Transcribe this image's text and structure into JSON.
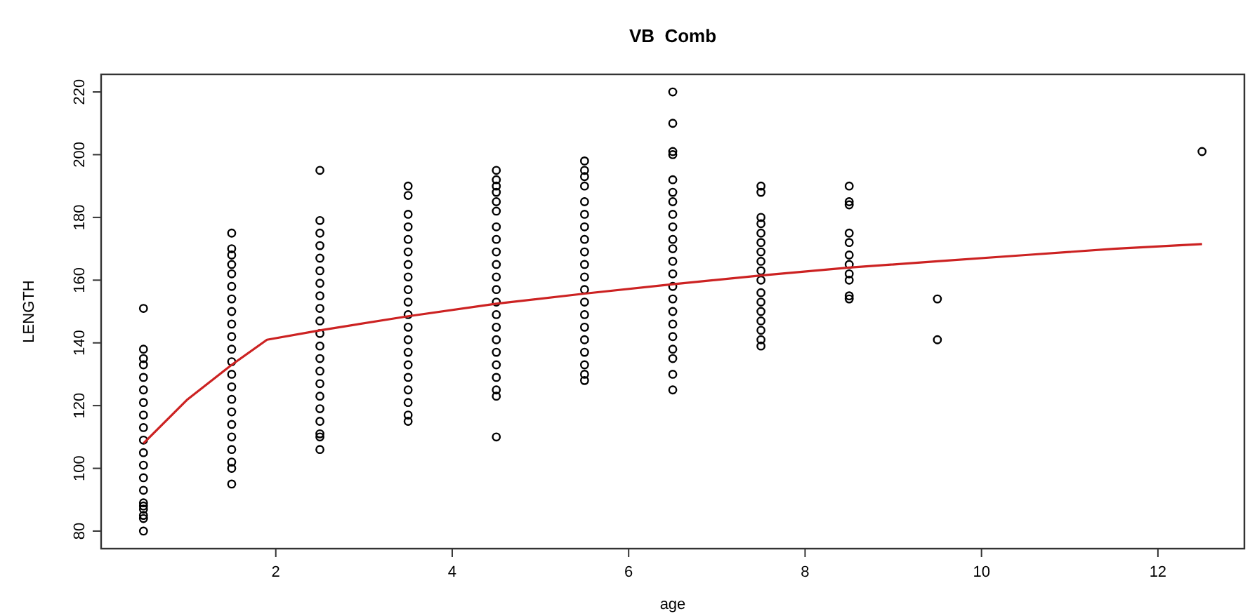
{
  "chart_data": {
    "type": "scatter",
    "title": "VB  Comb",
    "xlabel": "age",
    "ylabel": "LENGTH",
    "xlim": [
      0.02,
      12.98
    ],
    "ylim": [
      74.4,
      225.6
    ],
    "xticks": [
      2,
      4,
      6,
      8,
      10,
      12
    ],
    "yticks": [
      80,
      100,
      120,
      140,
      160,
      180,
      200,
      220
    ],
    "marker": "circle",
    "grid": false,
    "series": [
      {
        "color": "#000000",
        "x": [
          0.5,
          0.5,
          0.5,
          0.5,
          0.5,
          0.5,
          0.5,
          0.5,
          0.5,
          0.5,
          0.5,
          0.5,
          0.5,
          0.5,
          0.5,
          0.5,
          0.5,
          0.5,
          0.5,
          0.5,
          1.5,
          1.5,
          1.5,
          1.5,
          1.5,
          1.5,
          1.5,
          1.5,
          1.5,
          1.5,
          1.5,
          1.5,
          1.5,
          1.5,
          1.5,
          1.5,
          1.5,
          1.5,
          1.5,
          1.5,
          1.5,
          1.5,
          2.5,
          2.5,
          2.5,
          2.5,
          2.5,
          2.5,
          2.5,
          2.5,
          2.5,
          2.5,
          2.5,
          2.5,
          2.5,
          2.5,
          2.5,
          2.5,
          2.5,
          2.5,
          2.5,
          2.5,
          2.5,
          3.5,
          3.5,
          3.5,
          3.5,
          3.5,
          3.5,
          3.5,
          3.5,
          3.5,
          3.5,
          3.5,
          3.5,
          3.5,
          3.5,
          3.5,
          3.5,
          3.5,
          3.5,
          3.5,
          3.5,
          4.5,
          4.5,
          4.5,
          4.5,
          4.5,
          4.5,
          4.5,
          4.5,
          4.5,
          4.5,
          4.5,
          4.5,
          4.5,
          4.5,
          4.5,
          4.5,
          4.5,
          4.5,
          4.5,
          4.5,
          4.5,
          4.5,
          5.5,
          5.5,
          5.5,
          5.5,
          5.5,
          5.5,
          5.5,
          5.5,
          5.5,
          5.5,
          5.5,
          5.5,
          5.5,
          5.5,
          5.5,
          5.5,
          5.5,
          5.5,
          5.5,
          5.5,
          6.5,
          6.5,
          6.5,
          6.5,
          6.5,
          6.5,
          6.5,
          6.5,
          6.5,
          6.5,
          6.5,
          6.5,
          6.5,
          6.5,
          6.5,
          6.5,
          6.5,
          6.5,
          6.5,
          6.5,
          6.5,
          6.5,
          7.5,
          7.5,
          7.5,
          7.5,
          7.5,
          7.5,
          7.5,
          7.5,
          7.5,
          7.5,
          7.5,
          7.5,
          7.5,
          7.5,
          7.5,
          7.5,
          7.5,
          8.5,
          8.5,
          8.5,
          8.5,
          8.5,
          8.5,
          8.5,
          8.5,
          8.5,
          8.5,
          8.5,
          9.5,
          9.5,
          12.5
        ],
        "values": [
          80,
          84,
          85,
          87,
          88,
          89,
          93,
          97,
          101,
          105,
          109,
          113,
          117,
          121,
          125,
          129,
          133,
          135,
          138,
          151,
          95,
          100,
          102,
          106,
          110,
          114,
          118,
          122,
          126,
          130,
          134,
          138,
          142,
          146,
          150,
          154,
          158,
          162,
          165,
          168,
          170,
          175,
          106,
          110,
          111,
          115,
          119,
          123,
          127,
          131,
          135,
          139,
          143,
          147,
          151,
          155,
          159,
          163,
          167,
          171,
          175,
          179,
          195,
          115,
          117,
          121,
          125,
          129,
          133,
          137,
          141,
          145,
          149,
          153,
          157,
          161,
          165,
          169,
          173,
          177,
          181,
          187,
          190,
          110,
          123,
          125,
          129,
          133,
          137,
          141,
          145,
          149,
          153,
          157,
          161,
          165,
          169,
          173,
          177,
          182,
          185,
          188,
          190,
          192,
          195,
          128,
          130,
          133,
          137,
          141,
          145,
          149,
          153,
          157,
          161,
          165,
          169,
          173,
          177,
          181,
          185,
          190,
          193,
          195,
          198,
          125,
          130,
          135,
          138,
          142,
          146,
          150,
          154,
          158,
          162,
          166,
          170,
          173,
          177,
          181,
          185,
          188,
          192,
          200,
          201,
          210,
          220,
          139,
          141,
          144,
          147,
          150,
          153,
          156,
          160,
          163,
          166,
          169,
          172,
          175,
          178,
          180,
          188,
          190,
          154,
          155,
          160,
          162,
          165,
          168,
          172,
          175,
          184,
          185,
          190,
          141,
          154,
          201
        ]
      },
      {
        "type": "line",
        "color": "#cc2222",
        "marker": "none",
        "line_style": "solid",
        "x": [
          0.5,
          1,
          1.5,
          1.9,
          2.5,
          3.5,
          4.5,
          5.5,
          6.5,
          7.5,
          8.5,
          9.5,
          10.5,
          11.5,
          12.5
        ],
        "values": [
          108,
          122,
          133,
          141,
          144,
          148.5,
          152.5,
          155.7,
          158.7,
          161.5,
          164,
          166,
          168,
          170,
          171.5
        ]
      }
    ]
  }
}
